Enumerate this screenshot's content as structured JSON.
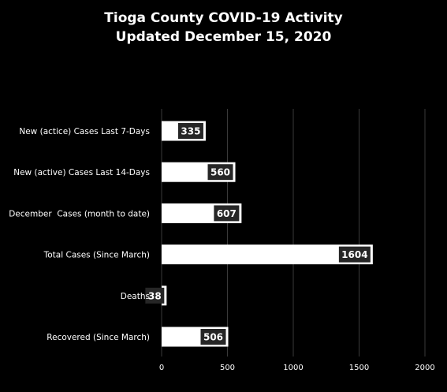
{
  "chart_data": {
    "type": "bar",
    "orientation": "horizontal",
    "title_lines": [
      "Tioga County COVID-19 Activity",
      "Updated December 15, 2020"
    ],
    "categories": [
      "New (actice) Cases Last 7-Days",
      "New (active) Cases Last 14-Days",
      "December  Cases (month to date)",
      "Total Cases (Since March)",
      "Deaths",
      "Recovered (Since March)"
    ],
    "values": [
      335,
      560,
      607,
      1604,
      38,
      506
    ],
    "value_labels": [
      "335",
      "560",
      "607",
      "1604",
      "38",
      "506"
    ],
    "xlim": [
      0,
      2000
    ],
    "x_ticks": [
      "0",
      "500",
      "1000",
      "1500",
      "2000"
    ],
    "x_tick_values": [
      0,
      500,
      1000,
      1500,
      2000
    ],
    "grid": true,
    "legend": "none",
    "colors": {
      "background": "#000000",
      "bar": "#ffffff",
      "label_box": "#262626",
      "grid": "#3a3a3a",
      "text": "#ffffff"
    }
  }
}
